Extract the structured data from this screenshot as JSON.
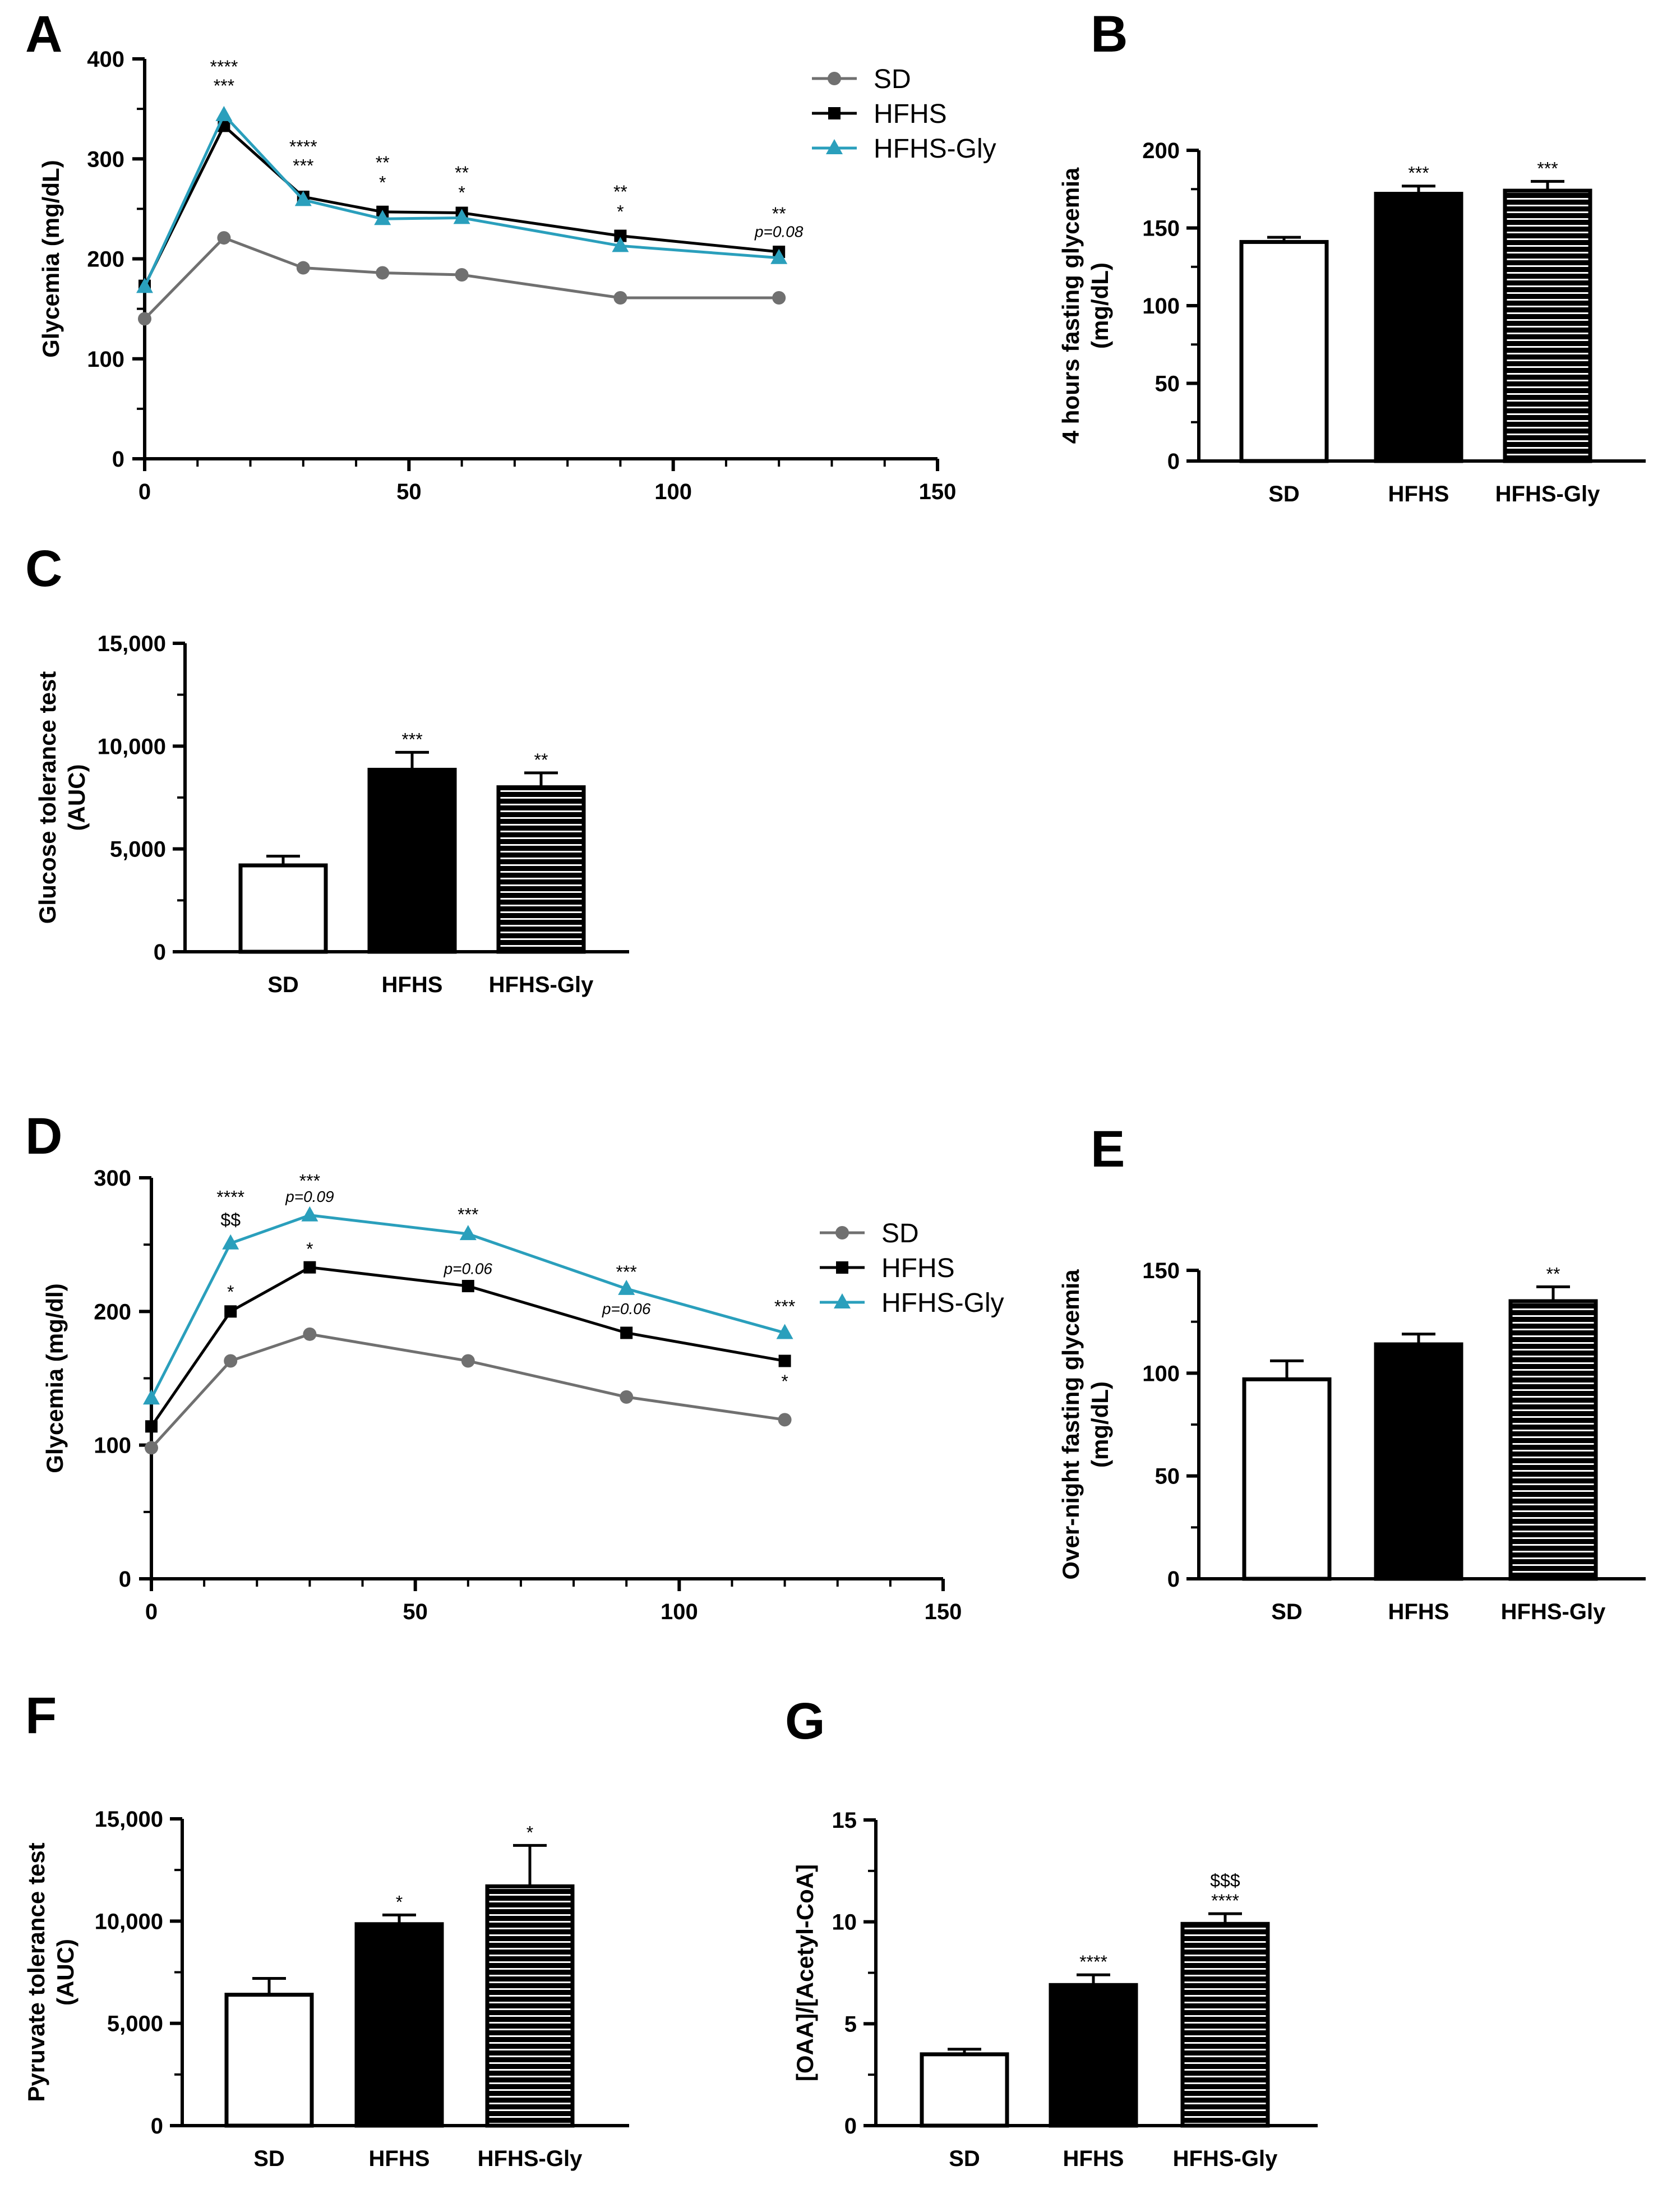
{
  "colors": {
    "SD": "#707070",
    "HFHS": "#000000",
    "HFHS-Gly": "#2a9fbc"
  },
  "chart_data": [
    {
      "panel": "A",
      "type": "line",
      "xlabel": "",
      "ylabel": "Glycemia (mg/dL)",
      "xlim": [
        0,
        150
      ],
      "ylim": [
        0,
        400
      ],
      "xticks": [
        0,
        50,
        100,
        150
      ],
      "yticks": [
        0,
        100,
        200,
        300,
        400
      ],
      "x": [
        0,
        15,
        30,
        45,
        60,
        90,
        120
      ],
      "legend": [
        "SD",
        "HFHS",
        "HFHS-Gly"
      ],
      "series": [
        {
          "name": "SD",
          "marker": "circle",
          "values": [
            140,
            221,
            191,
            186,
            184,
            161,
            161
          ]
        },
        {
          "name": "HFHS",
          "marker": "square",
          "values": [
            173,
            333,
            262,
            247,
            246,
            223,
            207
          ]
        },
        {
          "name": "HFHS-Gly",
          "marker": "triangle",
          "values": [
            172,
            344,
            259,
            240,
            241,
            213,
            201
          ]
        }
      ],
      "annotations": [
        {
          "x": 15,
          "y": 386,
          "text": "****"
        },
        {
          "x": 15,
          "y": 367,
          "text": "***"
        },
        {
          "x": 30,
          "y": 306,
          "text": "****"
        },
        {
          "x": 30,
          "y": 287,
          "text": "***"
        },
        {
          "x": 45,
          "y": 290,
          "text": "**"
        },
        {
          "x": 45,
          "y": 270,
          "text": "*"
        },
        {
          "x": 60,
          "y": 280,
          "text": "**"
        },
        {
          "x": 60,
          "y": 260,
          "text": "*"
        },
        {
          "x": 90,
          "y": 261,
          "text": "**"
        },
        {
          "x": 90,
          "y": 241,
          "text": "*"
        },
        {
          "x": 120,
          "y": 239,
          "text": "**"
        },
        {
          "x": 120,
          "y": 222,
          "text": "p=0.08",
          "italic": true
        }
      ]
    },
    {
      "panel": "B",
      "type": "bar",
      "ylabel": "4 hours fasting glycemia (mg/dL)",
      "ylabel_lines": [
        "4 hours fasting glycemia",
        "(mg/dL)"
      ],
      "ylim": [
        0,
        200
      ],
      "yticks": [
        0,
        50,
        100,
        150,
        200
      ],
      "categories": [
        "SD",
        "HFHS",
        "HFHS-Gly"
      ],
      "values": [
        141,
        172,
        174
      ],
      "errors": [
        3,
        5,
        6
      ],
      "labels": [
        "",
        "***",
        "***"
      ]
    },
    {
      "panel": "C",
      "type": "bar",
      "ylabel": "Glucose tolerance test (AUC)",
      "ylabel_lines": [
        "Glucose tolerance test",
        "(AUC)"
      ],
      "ylim": [
        0,
        15000
      ],
      "yticks": [
        0,
        5000,
        10000,
        15000
      ],
      "ytick_labels": [
        "0",
        "5,000",
        "10,000",
        "15,000"
      ],
      "categories": [
        "SD",
        "HFHS",
        "HFHS-Gly"
      ],
      "values": [
        4200,
        8850,
        8000
      ],
      "errors": [
        450,
        850,
        700
      ],
      "labels": [
        "",
        "***",
        "**"
      ]
    },
    {
      "panel": "D",
      "type": "line",
      "xlabel": "",
      "ylabel": "Glycemia (mg/dl)",
      "xlim": [
        0,
        150
      ],
      "ylim": [
        0,
        300
      ],
      "xticks": [
        0,
        50,
        100,
        150
      ],
      "yticks": [
        0,
        100,
        200,
        300
      ],
      "x": [
        0,
        15,
        30,
        60,
        90,
        120
      ],
      "legend": [
        "SD",
        "HFHS",
        "HFHS-Gly"
      ],
      "series": [
        {
          "name": "SD",
          "marker": "circle",
          "values": [
            98,
            163,
            183,
            163,
            136,
            119
          ]
        },
        {
          "name": "HFHS",
          "marker": "square",
          "values": [
            114,
            200,
            233,
            219,
            184,
            163
          ]
        },
        {
          "name": "HFHS-Gly",
          "marker": "triangle",
          "values": [
            135,
            251,
            272,
            258,
            217,
            184
          ]
        }
      ],
      "annotations": [
        {
          "x": 15,
          "y": 281,
          "text": "****"
        },
        {
          "x": 15,
          "y": 264,
          "text": "$$"
        },
        {
          "x": 30,
          "y": 293,
          "text": "***"
        },
        {
          "x": 30,
          "y": 282,
          "text": "p=0.09",
          "italic": true
        },
        {
          "x": 60,
          "y": 268,
          "text": "***"
        },
        {
          "x": 90,
          "y": 225,
          "text": "***"
        },
        {
          "x": 120,
          "y": 199,
          "text": "***"
        },
        {
          "x": 15,
          "y": 210,
          "text": "*"
        },
        {
          "x": 30,
          "y": 242,
          "text": "*"
        },
        {
          "x": 60,
          "y": 228,
          "text": "p=0.06",
          "italic": true
        },
        {
          "x": 90,
          "y": 198,
          "text": "p=0.06",
          "italic": true
        },
        {
          "x": 120,
          "y": 143,
          "text": "*"
        }
      ]
    },
    {
      "panel": "E",
      "type": "bar",
      "ylabel": "Over-night fasting glycemia (mg/dL)",
      "ylabel_lines": [
        "Over-night fasting glycemia",
        "(mg/dL)"
      ],
      "ylim": [
        0,
        150
      ],
      "yticks": [
        0,
        50,
        100,
        150
      ],
      "categories": [
        "SD",
        "HFHS",
        "HFHS-Gly"
      ],
      "values": [
        97,
        114,
        135
      ],
      "errors": [
        9,
        5,
        7
      ],
      "labels": [
        "",
        "",
        "**"
      ]
    },
    {
      "panel": "F",
      "type": "bar",
      "ylabel": "Pyruvate tolerance test (AUC)",
      "ylabel_lines": [
        "Pyruvate tolerance test",
        "(AUC)"
      ],
      "ylim": [
        0,
        15000
      ],
      "yticks": [
        0,
        5000,
        10000,
        15000
      ],
      "ytick_labels": [
        "0",
        "5,000",
        "10,000",
        "15,000"
      ],
      "categories": [
        "SD",
        "HFHS",
        "HFHS-Gly"
      ],
      "values": [
        6400,
        9850,
        11700
      ],
      "errors": [
        800,
        450,
        2000
      ],
      "labels": [
        "",
        "*",
        "*"
      ]
    },
    {
      "panel": "G",
      "type": "bar",
      "ylabel": "[OAA]/[Acetyl-CoA]",
      "ylabel_lines": [
        "[OAA]/[Acetyl-CoA]"
      ],
      "ylim": [
        0,
        15
      ],
      "yticks": [
        0,
        5,
        10,
        15
      ],
      "categories": [
        "SD",
        "HFHS",
        "HFHS-Gly"
      ],
      "values": [
        3.5,
        6.9,
        9.9
      ],
      "errors": [
        0.25,
        0.5,
        0.5
      ],
      "labels": [
        "",
        "****",
        "****"
      ],
      "labels2": [
        "",
        "",
        "$$$"
      ]
    }
  ]
}
